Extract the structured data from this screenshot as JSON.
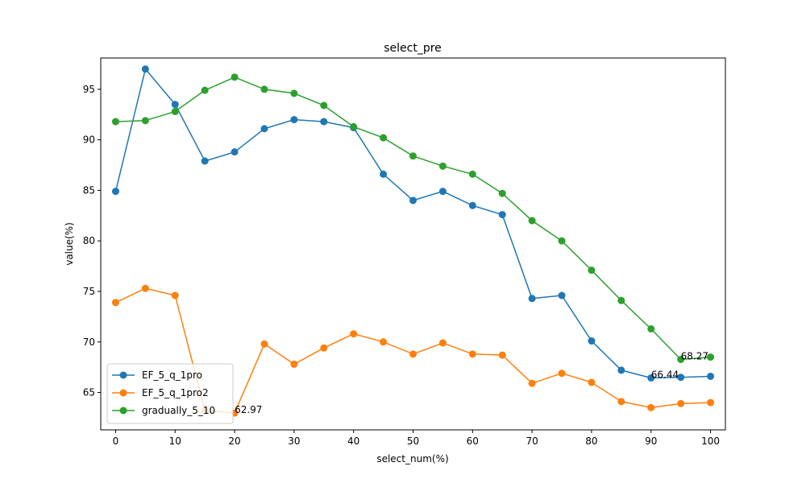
{
  "chart_data": {
    "type": "line",
    "title": "select_pre",
    "xlabel": "select_num(%)",
    "ylabel": "value(%)",
    "x": [
      0,
      5,
      10,
      15,
      20,
      25,
      30,
      35,
      40,
      45,
      50,
      55,
      60,
      65,
      70,
      75,
      80,
      85,
      90,
      95,
      100
    ],
    "xticks": [
      0,
      10,
      20,
      30,
      40,
      50,
      60,
      70,
      80,
      90,
      100
    ],
    "xlim": [
      -2.5,
      102.5
    ],
    "yticks": [
      65,
      70,
      75,
      80,
      85,
      90,
      95
    ],
    "ylim": [
      61.3,
      98.1
    ],
    "grid": false,
    "legend_position": "lower left",
    "series": [
      {
        "name": "EF_5_q_1pro",
        "color": "#1f77b4",
        "values": [
          84.9,
          97.0,
          93.5,
          87.9,
          88.8,
          91.1,
          92.0,
          91.8,
          91.2,
          86.6,
          84.0,
          84.9,
          83.5,
          82.6,
          74.3,
          74.6,
          70.1,
          67.2,
          66.44,
          66.5,
          66.6
        ]
      },
      {
        "name": "EF_5_q_1pro2",
        "color": "#ff7f0e",
        "values": [
          73.9,
          75.3,
          74.6,
          63.2,
          62.97,
          69.8,
          67.8,
          69.4,
          70.8,
          70.0,
          68.8,
          69.9,
          68.8,
          68.7,
          65.9,
          66.9,
          66.0,
          64.1,
          63.5,
          63.9,
          64.0
        ]
      },
      {
        "name": "gradually_5_10",
        "color": "#2ca02c",
        "values": [
          91.8,
          91.9,
          92.8,
          94.9,
          96.2,
          95.0,
          94.6,
          93.4,
          91.3,
          90.2,
          88.4,
          87.4,
          86.6,
          84.7,
          82.0,
          80.0,
          77.1,
          74.1,
          71.3,
          68.27,
          68.5
        ]
      }
    ],
    "annotations": [
      {
        "text": "62.97",
        "x": 20,
        "y": 62.97
      },
      {
        "text": "66.44",
        "x": 90,
        "y": 66.44
      },
      {
        "text": "68.27",
        "x": 95,
        "y": 68.27
      }
    ]
  }
}
